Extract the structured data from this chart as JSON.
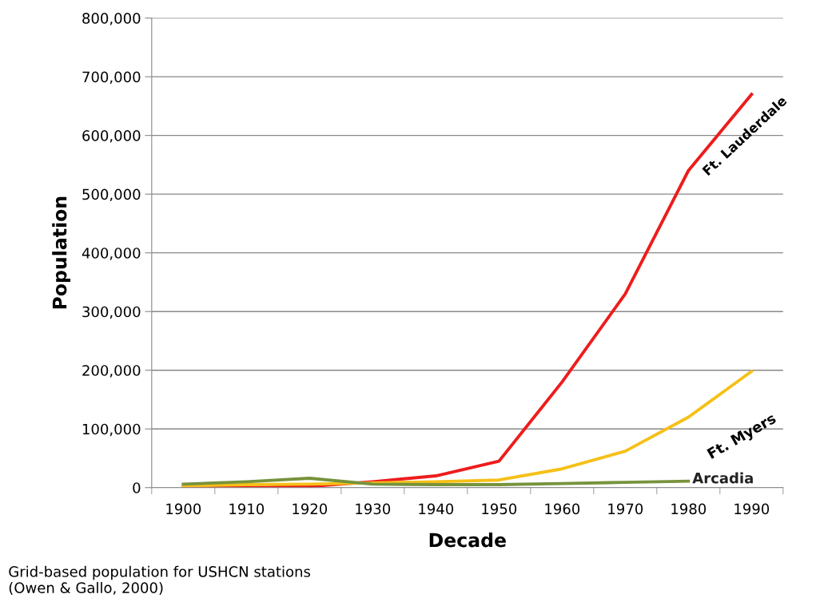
{
  "chart_data": {
    "type": "line",
    "xlabel": "Decade",
    "ylabel": "Population",
    "categories": [
      "1900",
      "1910",
      "1920",
      "1930",
      "1940",
      "1950",
      "1960",
      "1970",
      "1980",
      "1990"
    ],
    "series": [
      {
        "name": "Ft. Lauderdale",
        "color": "#ee1c1c",
        "values": [
          0,
          0,
          2000,
          10000,
          20000,
          45000,
          180000,
          330000,
          540000,
          670000
        ]
      },
      {
        "name": "Ft. Myers",
        "color": "#f5c018",
        "values": [
          3000,
          5000,
          6000,
          8000,
          10000,
          13000,
          32000,
          62000,
          120000,
          198000
        ]
      },
      {
        "name": "Arcadia",
        "color": "#77933c",
        "values": [
          6000,
          10000,
          16000,
          6000,
          5000,
          5000,
          7000,
          9000,
          11000,
          null
        ]
      }
    ],
    "ylim": [
      0,
      800000
    ],
    "yticks": [
      {
        "value": 0,
        "label": "0"
      },
      {
        "value": 100000,
        "label": "100,000"
      },
      {
        "value": 200000,
        "label": "200,000"
      },
      {
        "value": 300000,
        "label": "300,000"
      },
      {
        "value": 400000,
        "label": "400,000"
      },
      {
        "value": 500000,
        "label": "500,000"
      },
      {
        "value": 600000,
        "label": "600,000"
      },
      {
        "value": 700000,
        "label": "700,000"
      },
      {
        "value": 800000,
        "label": "800,000"
      }
    ],
    "grid": "y",
    "legend": false,
    "marker": "none",
    "line_style": "solid",
    "annotations": [
      "Grid-based population for USHCN stations\n(Owen & Gallo, 2000)"
    ]
  }
}
